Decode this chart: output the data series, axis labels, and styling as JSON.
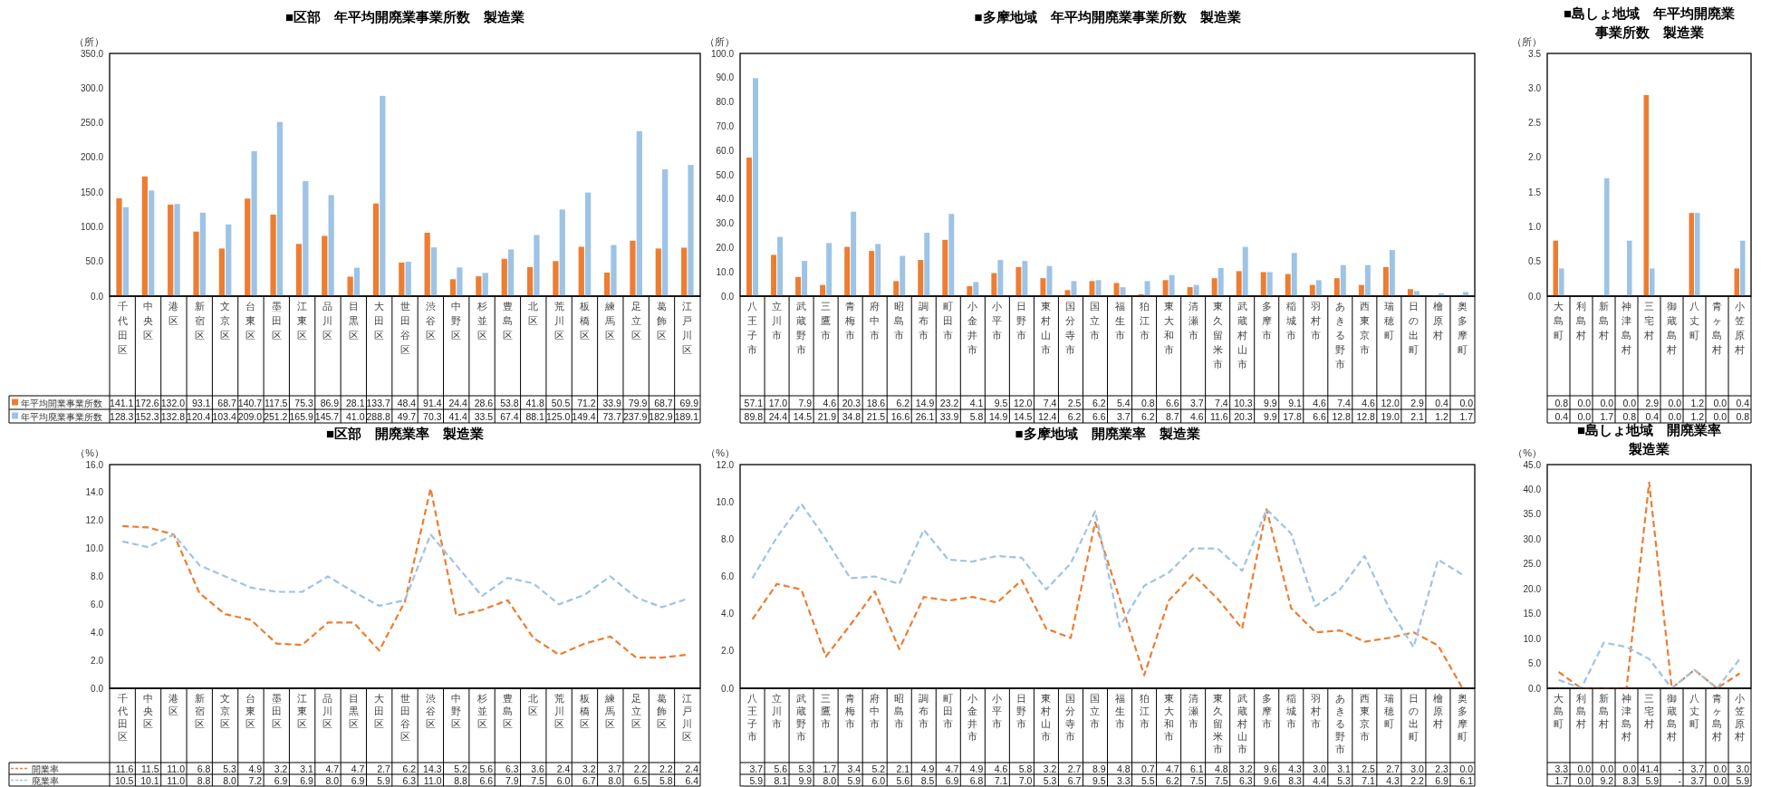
{
  "chart_data": [
    {
      "type": "bar",
      "title": "■区部　年平均開廃業事業所数　製造業",
      "ylabel": "（所）",
      "legend": "bottom",
      "categories": [
        "千代田区",
        "中央区",
        "港区",
        "新宿区",
        "文京区",
        "台東区",
        "墨田区",
        "江東区",
        "品川区",
        "目黒区",
        "大田区",
        "世田谷区",
        "渋谷区",
        "中野区",
        "杉並区",
        "豊島区",
        "北区",
        "荒川区",
        "板橋区",
        "練馬区",
        "足立区",
        "葛飾区",
        "江戸川区"
      ],
      "series": [
        {
          "name": "年平均開業事業所数",
          "color": "#ed7d31",
          "values": [
            141.1,
            172.6,
            132.0,
            93.1,
            68.7,
            140.7,
            117.5,
            75.3,
            86.9,
            28.1,
            133.7,
            48.4,
            91.4,
            24.4,
            28.6,
            53.8,
            41.8,
            50.5,
            71.2,
            33.9,
            79.9,
            68.7,
            69.9
          ],
          "value_labels": [
            "141.1",
            "172.6",
            "132.0",
            "93.1",
            "68.7",
            "140.7",
            "117.5",
            "75.3",
            "86.9",
            "28.1",
            "133.7",
            "48.4",
            "91.4",
            "24.4",
            "28.6",
            "53.8",
            "41.8",
            "50.5",
            "71.2",
            "33.9",
            "79.9",
            "68.7",
            "69.9"
          ]
        },
        {
          "name": "年平均廃業事業所数",
          "color": "#9dc3e6",
          "values": [
            128.3,
            152.3,
            132.8,
            120.4,
            103.4,
            209.0,
            251.2,
            165.9,
            145.7,
            41.0,
            288.8,
            49.7,
            70.3,
            41.4,
            33.5,
            67.4,
            88.1,
            125.0,
            149.4,
            73.7,
            237.9,
            182.9,
            189.1
          ],
          "value_labels": [
            "128.3",
            "152.3",
            "132.8",
            "120.4",
            "103.4",
            "209.0",
            "251.2",
            "165.9",
            "145.7",
            "41.0",
            "288.8",
            "49.7",
            "70.3",
            "41.4",
            "33.5",
            "67.4",
            "88.1",
            "125.0",
            "149.4",
            "73.7",
            "237.9",
            "182.9",
            "189.1"
          ]
        }
      ],
      "ylim": [
        0,
        350
      ],
      "yticks": [
        {
          "value": 0,
          "label": "0.0"
        },
        {
          "value": 50,
          "label": "50.0"
        },
        {
          "value": 100,
          "label": "100.0"
        },
        {
          "value": 150,
          "label": "150.0"
        },
        {
          "value": 200,
          "label": "200.0"
        },
        {
          "value": 250,
          "label": "250.0"
        },
        {
          "value": 300,
          "label": "300.0"
        },
        {
          "value": 350,
          "label": "350.0"
        }
      ]
    },
    {
      "type": "bar",
      "title": "■多摩地域　年平均開廃業事業所数　製造業",
      "ylabel": "（所）",
      "categories": [
        "八王子市",
        "立川市",
        "武蔵野市",
        "三鷹市",
        "青梅市",
        "府中市",
        "昭島市",
        "調布市",
        "町田市",
        "小金井市",
        "小平市",
        "日野市",
        "東村山市",
        "国分寺市",
        "国立市",
        "福生市",
        "狛江市",
        "東大和市",
        "清瀬市",
        "東久留米市",
        "武蔵村山市",
        "多摩市",
        "稲城市",
        "羽村市",
        "あきる野市",
        "西東京市",
        "瑞穂町",
        "日の出町",
        "檜原村",
        "奥多摩町"
      ],
      "series": [
        {
          "color": "#ed7d31",
          "values": [
            57.1,
            17.0,
            7.9,
            4.6,
            20.3,
            18.6,
            6.2,
            14.9,
            23.2,
            4.1,
            9.5,
            12.0,
            7.4,
            2.5,
            6.2,
            5.4,
            0.8,
            6.6,
            3.7,
            7.4,
            10.3,
            9.9,
            9.1,
            4.6,
            7.4,
            4.6,
            12.0,
            2.9,
            0.4,
            0.0
          ],
          "value_labels": [
            "57.1",
            "17.0",
            "7.9",
            "4.6",
            "20.3",
            "18.6",
            "6.2",
            "14.9",
            "23.2",
            "4.1",
            "9.5",
            "12.0",
            "7.4",
            "2.5",
            "6.2",
            "5.4",
            "0.8",
            "6.6",
            "3.7",
            "7.4",
            "10.3",
            "9.9",
            "9.1",
            "4.6",
            "7.4",
            "4.6",
            "12.0",
            "2.9",
            "0.4",
            "0.0"
          ]
        },
        {
          "color": "#9dc3e6",
          "values": [
            89.8,
            24.4,
            14.5,
            21.9,
            34.8,
            21.5,
            16.6,
            26.1,
            33.9,
            5.8,
            14.9,
            14.5,
            12.4,
            6.2,
            6.6,
            3.7,
            6.2,
            8.7,
            4.6,
            11.6,
            20.3,
            9.9,
            17.8,
            6.6,
            12.8,
            12.8,
            19.0,
            2.1,
            1.2,
            1.7
          ],
          "value_labels": [
            "89.8",
            "24.4",
            "14.5",
            "21.9",
            "34.8",
            "21.5",
            "16.6",
            "26.1",
            "33.9",
            "5.8",
            "14.9",
            "14.5",
            "12.4",
            "6.2",
            "6.6",
            "3.7",
            "6.2",
            "8.7",
            "4.6",
            "11.6",
            "20.3",
            "9.9",
            "17.8",
            "6.6",
            "12.8",
            "12.8",
            "19.0",
            "2.1",
            "1.2",
            "1.7"
          ]
        }
      ],
      "ylim": [
        0,
        100
      ],
      "yticks": [
        {
          "value": 0,
          "label": "0.0"
        },
        {
          "value": 10,
          "label": "10.0"
        },
        {
          "value": 20,
          "label": "20.0"
        },
        {
          "value": 30,
          "label": "30.0"
        },
        {
          "value": 40,
          "label": "40.0"
        },
        {
          "value": 50,
          "label": "50.0"
        },
        {
          "value": 60,
          "label": "60.0"
        },
        {
          "value": 70,
          "label": "70.0"
        },
        {
          "value": 80,
          "label": "80.0"
        },
        {
          "value": 90,
          "label": "90.0"
        },
        {
          "value": 100,
          "label": "100.0"
        }
      ]
    },
    {
      "type": "bar",
      "title": "■島しょ地域　年平均開廃業事業所数　製造業",
      "ylabel": "（所）",
      "categories": [
        "大島町",
        "利島村",
        "新島村",
        "神津島村",
        "三宅村",
        "御蔵島村",
        "八丈町",
        "青ヶ島村",
        "小笠原村"
      ],
      "series": [
        {
          "color": "#ed7d31",
          "values": [
            0.8,
            0.0,
            0.0,
            0.0,
            2.9,
            0.0,
            1.2,
            0.0,
            0.4
          ],
          "value_labels": [
            "0.8",
            "0.0",
            "0.0",
            "0.0",
            "2.9",
            "0.0",
            "1.2",
            "0.0",
            "0.4"
          ]
        },
        {
          "color": "#9dc3e6",
          "values": [
            0.4,
            0.0,
            1.7,
            0.8,
            0.4,
            0.0,
            1.2,
            0.0,
            0.8
          ],
          "value_labels": [
            "0.4",
            "0.0",
            "1.7",
            "0.8",
            "0.4",
            "0.0",
            "1.2",
            "0.0",
            "0.8"
          ]
        }
      ],
      "ylim": [
        0,
        3.5
      ],
      "yticks": [
        {
          "value": 0,
          "label": "0.0"
        },
        {
          "value": 0.5,
          "label": "0.5"
        },
        {
          "value": 1,
          "label": "1.0"
        },
        {
          "value": 1.5,
          "label": "1.5"
        },
        {
          "value": 2,
          "label": "2.0"
        },
        {
          "value": 2.5,
          "label": "2.5"
        },
        {
          "value": 3,
          "label": "3.0"
        },
        {
          "value": 3.5,
          "label": "3.5"
        }
      ]
    },
    {
      "type": "line",
      "line_style": "dashed",
      "title": "■区部　開廃業率　製造業",
      "ylabel": "（%）",
      "legend": "bottom",
      "categories": [
        "千代田区",
        "中央区",
        "港区",
        "新宿区",
        "文京区",
        "台東区",
        "墨田区",
        "江東区",
        "品川区",
        "目黒区",
        "大田区",
        "世田谷区",
        "渋谷区",
        "中野区",
        "杉並区",
        "豊島区",
        "北区",
        "荒川区",
        "板橋区",
        "練馬区",
        "足立区",
        "葛飾区",
        "江戸川区"
      ],
      "series": [
        {
          "name": "開業率",
          "color": "#ed7d31",
          "values": [
            11.6,
            11.5,
            11.0,
            6.8,
            5.3,
            4.9,
            3.2,
            3.1,
            4.7,
            4.7,
            2.7,
            6.2,
            14.3,
            5.2,
            5.6,
            6.3,
            3.6,
            2.4,
            3.2,
            3.7,
            2.2,
            2.2,
            2.4
          ],
          "value_labels": [
            "11.6",
            "11.5",
            "11.0",
            "6.8",
            "5.3",
            "4.9",
            "3.2",
            "3.1",
            "4.7",
            "4.7",
            "2.7",
            "6.2",
            "14.3",
            "5.2",
            "5.6",
            "6.3",
            "3.6",
            "2.4",
            "3.2",
            "3.7",
            "2.2",
            "2.2",
            "2.4"
          ]
        },
        {
          "name": "廃業率",
          "color": "#9dc3e6",
          "values": [
            10.5,
            10.1,
            11.0,
            8.8,
            8.0,
            7.2,
            6.9,
            6.9,
            8.0,
            6.9,
            5.9,
            6.3,
            11.0,
            8.8,
            6.6,
            7.9,
            7.5,
            6.0,
            6.7,
            8.0,
            6.5,
            5.8,
            6.4
          ],
          "value_labels": [
            "10.5",
            "10.1",
            "11.0",
            "8.8",
            "8.0",
            "7.2",
            "6.9",
            "6.9",
            "8.0",
            "6.9",
            "5.9",
            "6.3",
            "11.0",
            "8.8",
            "6.6",
            "7.9",
            "7.5",
            "6.0",
            "6.7",
            "8.0",
            "6.5",
            "5.8",
            "6.4"
          ]
        }
      ],
      "ylim": [
        0,
        16
      ],
      "yticks": [
        {
          "value": 0,
          "label": "0.0"
        },
        {
          "value": 2,
          "label": "2.0"
        },
        {
          "value": 4,
          "label": "4.0"
        },
        {
          "value": 6,
          "label": "6.0"
        },
        {
          "value": 8,
          "label": "8.0"
        },
        {
          "value": 10,
          "label": "10.0"
        },
        {
          "value": 12,
          "label": "12.0"
        },
        {
          "value": 14,
          "label": "14.0"
        },
        {
          "value": 16,
          "label": "16.0"
        }
      ]
    },
    {
      "type": "line",
      "line_style": "dashed",
      "title": "■多摩地域　開廃業率　製造業",
      "ylabel": "（%）",
      "categories": [
        "八王子市",
        "立川市",
        "武蔵野市",
        "三鷹市",
        "青梅市",
        "府中市",
        "昭島市",
        "調布市",
        "町田市",
        "小金井市",
        "小平市",
        "日野市",
        "東村山市",
        "国分寺市",
        "国立市",
        "福生市",
        "狛江市",
        "東大和市",
        "清瀬市",
        "東久留米市",
        "武蔵村山市",
        "多摩市",
        "稲城市",
        "羽村市",
        "あきる野市",
        "西東京市",
        "瑞穂町",
        "日の出町",
        "檜原村",
        "奥多摩町"
      ],
      "series": [
        {
          "color": "#ed7d31",
          "values": [
            3.7,
            5.6,
            5.3,
            1.7,
            3.4,
            5.2,
            2.1,
            4.9,
            4.7,
            4.9,
            4.6,
            5.8,
            3.2,
            2.7,
            8.9,
            4.8,
            0.7,
            4.7,
            6.1,
            4.8,
            3.2,
            9.6,
            4.3,
            3.0,
            3.1,
            2.5,
            2.7,
            3.0,
            2.3,
            0.0
          ],
          "value_labels": [
            "3.7",
            "5.6",
            "5.3",
            "1.7",
            "3.4",
            "5.2",
            "2.1",
            "4.9",
            "4.7",
            "4.9",
            "4.6",
            "5.8",
            "3.2",
            "2.7",
            "8.9",
            "4.8",
            "0.7",
            "4.7",
            "6.1",
            "4.8",
            "3.2",
            "9.6",
            "4.3",
            "3.0",
            "3.1",
            "2.5",
            "2.7",
            "3.0",
            "2.3",
            "0.0"
          ]
        },
        {
          "color": "#9dc3e6",
          "values": [
            5.9,
            8.1,
            9.9,
            8.0,
            5.9,
            6.0,
            5.6,
            8.5,
            6.9,
            6.8,
            7.1,
            7.0,
            5.3,
            6.7,
            9.5,
            3.3,
            5.5,
            6.2,
            7.5,
            7.5,
            6.3,
            9.6,
            8.3,
            4.4,
            5.3,
            7.1,
            4.3,
            2.2,
            6.9,
            6.1
          ],
          "value_labels": [
            "5.9",
            "8.1",
            "9.9",
            "8.0",
            "5.9",
            "6.0",
            "5.6",
            "8.5",
            "6.9",
            "6.8",
            "7.1",
            "7.0",
            "5.3",
            "6.7",
            "9.5",
            "3.3",
            "5.5",
            "6.2",
            "7.5",
            "7.5",
            "6.3",
            "9.6",
            "8.3",
            "4.4",
            "5.3",
            "7.1",
            "4.3",
            "2.2",
            "6.9",
            "6.1"
          ]
        }
      ],
      "ylim": [
        0,
        12
      ],
      "yticks": [
        {
          "value": 0,
          "label": "0.0"
        },
        {
          "value": 2,
          "label": "2.0"
        },
        {
          "value": 4,
          "label": "4.0"
        },
        {
          "value": 6,
          "label": "6.0"
        },
        {
          "value": 8,
          "label": "8.0"
        },
        {
          "value": 10,
          "label": "10.0"
        },
        {
          "value": 12,
          "label": "12.0"
        }
      ]
    },
    {
      "type": "line",
      "line_style": "dashed",
      "title": "■島しょ地域　開廃業率製造業",
      "ylabel": "（%）",
      "categories": [
        "大島町",
        "利島村",
        "新島村",
        "神津島村",
        "三宅村",
        "御蔵島村",
        "八丈町",
        "青ヶ島村",
        "小笠原村"
      ],
      "series": [
        {
          "color": "#ed7d31",
          "values": [
            3.3,
            0.0,
            0.0,
            0.0,
            41.4,
            0,
            3.7,
            0.0,
            3.0
          ],
          "value_labels": [
            "3.3",
            "0.0",
            "0.0",
            "0.0",
            "41.4",
            "-",
            "3.7",
            "0.0",
            "3.0"
          ]
        },
        {
          "color": "#9dc3e6",
          "values": [
            1.7,
            0.0,
            9.2,
            8.3,
            5.9,
            0,
            3.7,
            0.0,
            5.9
          ],
          "value_labels": [
            "1.7",
            "0.0",
            "9.2",
            "8.3",
            "5.9",
            "-",
            "3.7",
            "0.0",
            "5.9"
          ]
        }
      ],
      "ylim": [
        0,
        45
      ],
      "yticks": [
        {
          "value": 0,
          "label": "0.0"
        },
        {
          "value": 5,
          "label": "5.0"
        },
        {
          "value": 10,
          "label": "10.0"
        },
        {
          "value": 15,
          "label": "15.0"
        },
        {
          "value": 20,
          "label": "20.0"
        },
        {
          "value": 25,
          "label": "25.0"
        },
        {
          "value": 30,
          "label": "30.0"
        },
        {
          "value": 35,
          "label": "35.0"
        },
        {
          "value": 40,
          "label": "40.0"
        },
        {
          "value": 45,
          "label": "45.0"
        }
      ]
    }
  ]
}
